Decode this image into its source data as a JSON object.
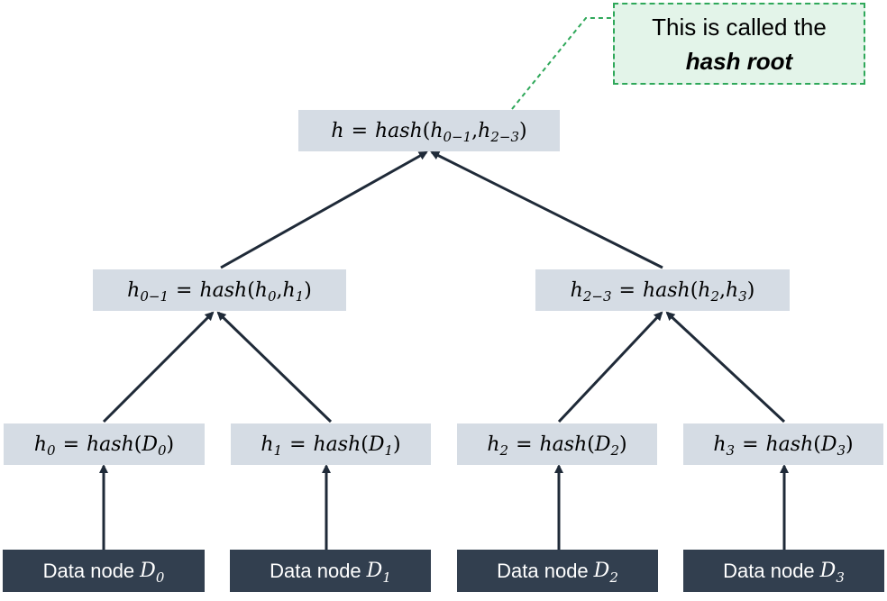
{
  "callout": {
    "line1": "This is called the",
    "line2": "hash root"
  },
  "root": {
    "lhs": "h",
    "eq": "=",
    "fn": "hash",
    "arg1_base": "h",
    "arg1_sub": "0−1",
    "arg2_base": "h",
    "arg2_sub": "2−3"
  },
  "mid_left": {
    "lhs_base": "h",
    "lhs_sub": "0−1",
    "eq": "=",
    "fn": "hash",
    "arg1_base": "h",
    "arg1_sub": "0",
    "arg2_base": "h",
    "arg2_sub": "1"
  },
  "mid_right": {
    "lhs_base": "h",
    "lhs_sub": "2−3",
    "eq": "=",
    "fn": "hash",
    "arg1_base": "h",
    "arg1_sub": "2",
    "arg2_base": "h",
    "arg2_sub": "3"
  },
  "leaves": [
    {
      "lhs_base": "h",
      "lhs_sub": "0",
      "eq": "=",
      "fn": "hash",
      "arg_base": "D",
      "arg_sub": "0"
    },
    {
      "lhs_base": "h",
      "lhs_sub": "1",
      "eq": "=",
      "fn": "hash",
      "arg_base": "D",
      "arg_sub": "1"
    },
    {
      "lhs_base": "h",
      "lhs_sub": "2",
      "eq": "=",
      "fn": "hash",
      "arg_base": "D",
      "arg_sub": "2"
    },
    {
      "lhs_base": "h",
      "lhs_sub": "3",
      "eq": "=",
      "fn": "hash",
      "arg_base": "D",
      "arg_sub": "3"
    }
  ],
  "data_nodes": [
    {
      "label": "Data node",
      "var_base": "D",
      "var_sub": "0"
    },
    {
      "label": "Data node",
      "var_base": "D",
      "var_sub": "1"
    },
    {
      "label": "Data node",
      "var_base": "D",
      "var_sub": "2"
    },
    {
      "label": "Data node",
      "var_base": "D",
      "var_sub": "3"
    }
  ],
  "colors": {
    "hash_node_fill": "#d5dce4",
    "data_node_fill": "#323f4f",
    "edge": "#1f2a38",
    "callout_border": "#2fa85a",
    "callout_fill": "#e3f4e9"
  }
}
